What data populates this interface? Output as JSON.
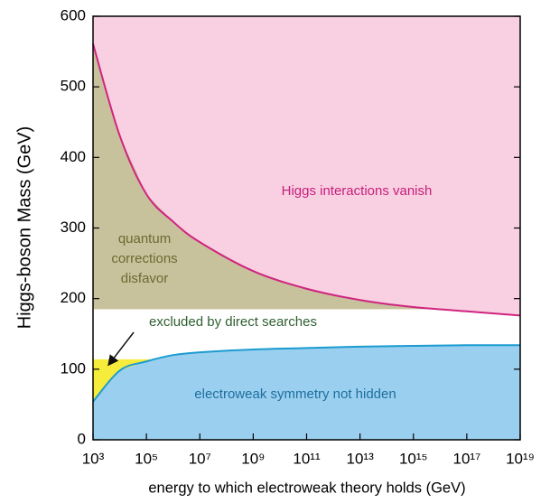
{
  "chart_data": {
    "type": "line",
    "xlabel": "energy to which electroweak theory holds (GeV)",
    "ylabel": "Higgs-boson Mass (GeV)",
    "xscale": "log",
    "xlim": [
      1000.0,
      1e+19
    ],
    "xticks": [
      {
        "value": 1000.0,
        "label": "10³"
      },
      {
        "value": 100000.0,
        "label": "10⁵"
      },
      {
        "value": 10000000.0,
        "label": "10⁷"
      },
      {
        "value": 1000000000.0,
        "label": "10⁹"
      },
      {
        "value": 100000000000.0,
        "label": "10¹¹"
      },
      {
        "value": 10000000000000.0,
        "label": "10¹³"
      },
      {
        "value": 1000000000000000.0,
        "label": "10¹⁵"
      },
      {
        "value": 1e+17,
        "label": "10¹⁷"
      },
      {
        "value": 1e+19,
        "label": "10¹⁹"
      }
    ],
    "ylim": [
      0,
      600
    ],
    "yticks": [
      0,
      100,
      200,
      300,
      400,
      500,
      600
    ],
    "x": [
      1000.0,
      10000.0,
      100000.0,
      1000000.0,
      10000000.0,
      1000000000.0,
      100000000000.0,
      10000000000000.0,
      1000000000000000.0,
      1e+17,
      1e+19
    ],
    "series": [
      {
        "color": "#d0247f",
        "fill": "#f8d0e1",
        "values": [
          561,
          431,
          348,
          309,
          280,
          239,
          214,
          198,
          188,
          182,
          176
        ]
      },
      {
        "color": "#1b9bd1",
        "fill": "#9bcfef",
        "values": [
          54,
          98,
          111,
          120,
          124,
          128,
          130,
          132,
          133,
          134,
          134
        ]
      }
    ],
    "y_bands": {
      "direct_search_limit": 114,
      "direct_search_color": "#f6ec3c",
      "corrections_floor": 185,
      "corrections_color": "#c8c29c"
    },
    "annotations": [
      "Higgs interactions vanish",
      [
        "quantum",
        "corrections",
        "disfavor"
      ],
      "excluded by direct searches",
      "electroweak symmetry not hidden"
    ],
    "annotation_colors": [
      "#c81d7c",
      "#6e6833",
      "#2f5f30",
      "#1d6fa0"
    ]
  }
}
